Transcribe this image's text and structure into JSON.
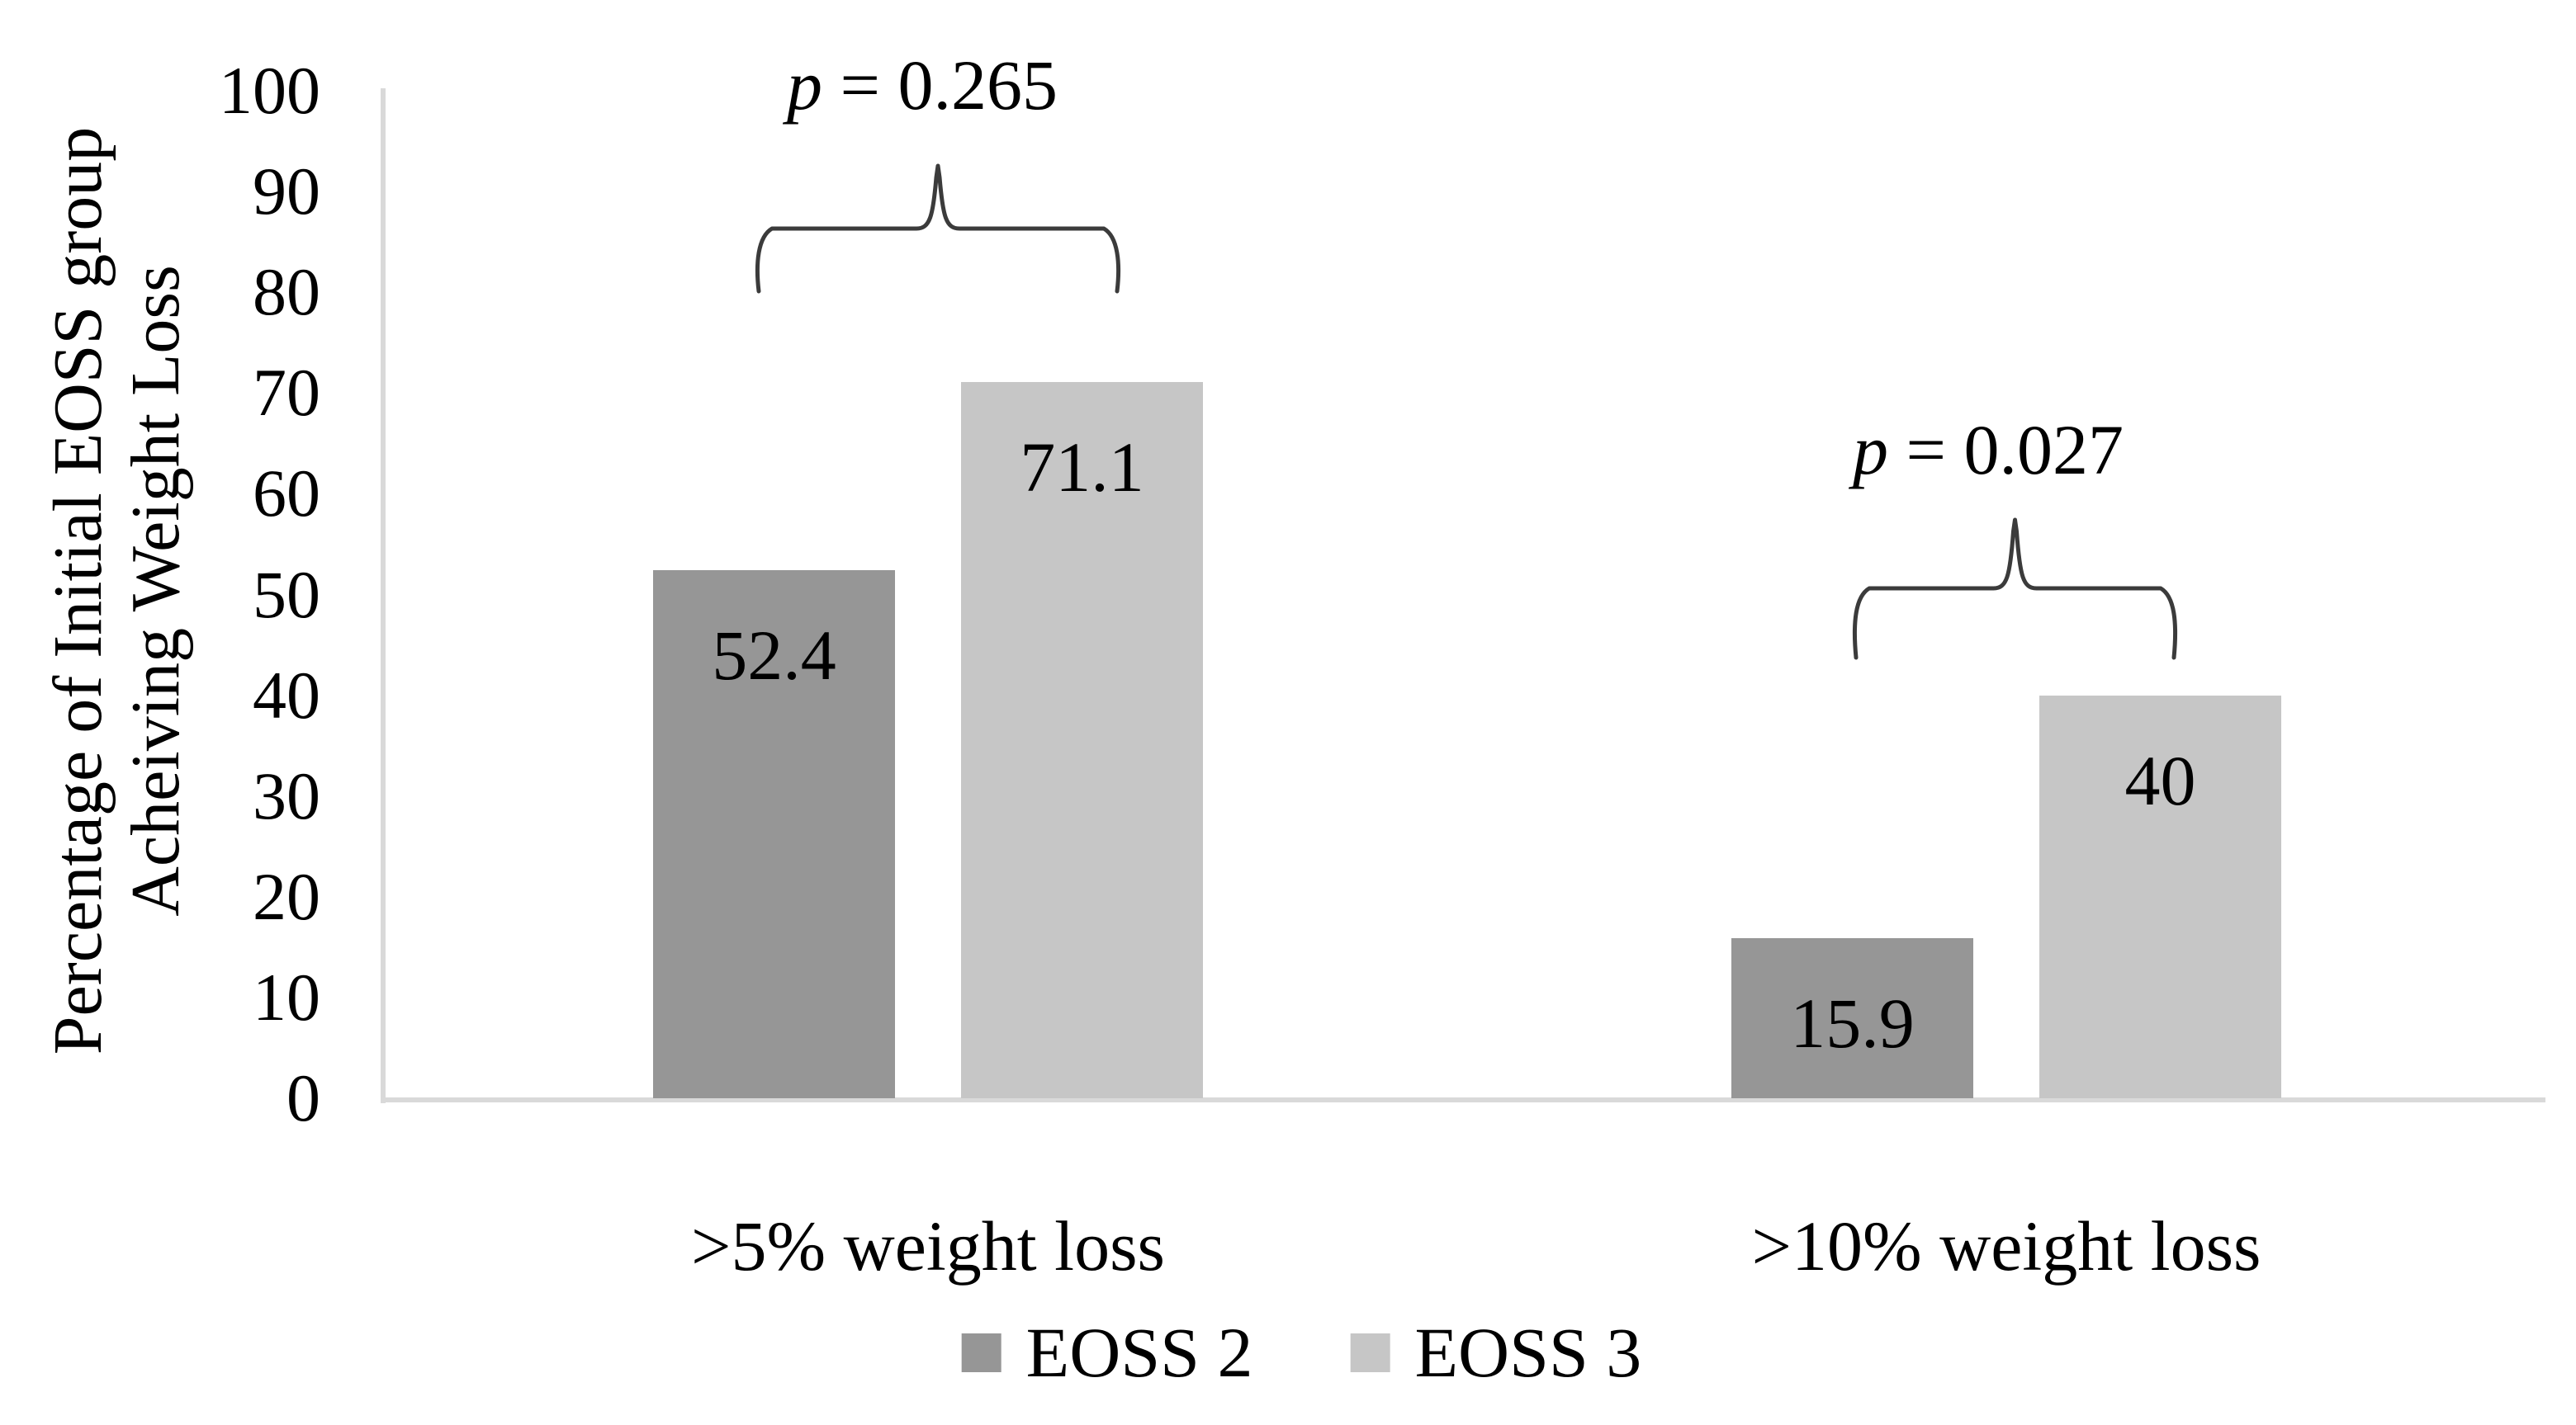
{
  "chart_data": {
    "type": "bar",
    "title": "",
    "ylabel_lines": [
      "Percentage of Initial EOSS group",
      "Acheiving Weight Loss"
    ],
    "xlabel": "",
    "categories": [
      ">5% weight loss",
      ">10% weight loss"
    ],
    "series": [
      {
        "name": "EOSS 2",
        "color": "#969696",
        "values": [
          52.4,
          15.9
        ]
      },
      {
        "name": "EOSS 3",
        "color": "#c6c6c6",
        "values": [
          71.1,
          40
        ]
      }
    ],
    "bar_labels": [
      [
        "52.4",
        "15.9"
      ],
      [
        "71.1",
        "40"
      ]
    ],
    "annotations": [
      {
        "italic": "p",
        "text": " = 0.265",
        "category_index": 0
      },
      {
        "italic": "p",
        "text": " = 0.027",
        "category_index": 1
      }
    ],
    "ylim": [
      0,
      100
    ],
    "ytick_step": 10,
    "yticks": [
      0,
      10,
      20,
      30,
      40,
      50,
      60,
      70,
      80,
      90,
      100
    ],
    "grid": "off",
    "legend_position": "bottom",
    "axis_color": "#d9d9d9",
    "brace_color": "#3b3b3b",
    "text_color": "#000000"
  }
}
